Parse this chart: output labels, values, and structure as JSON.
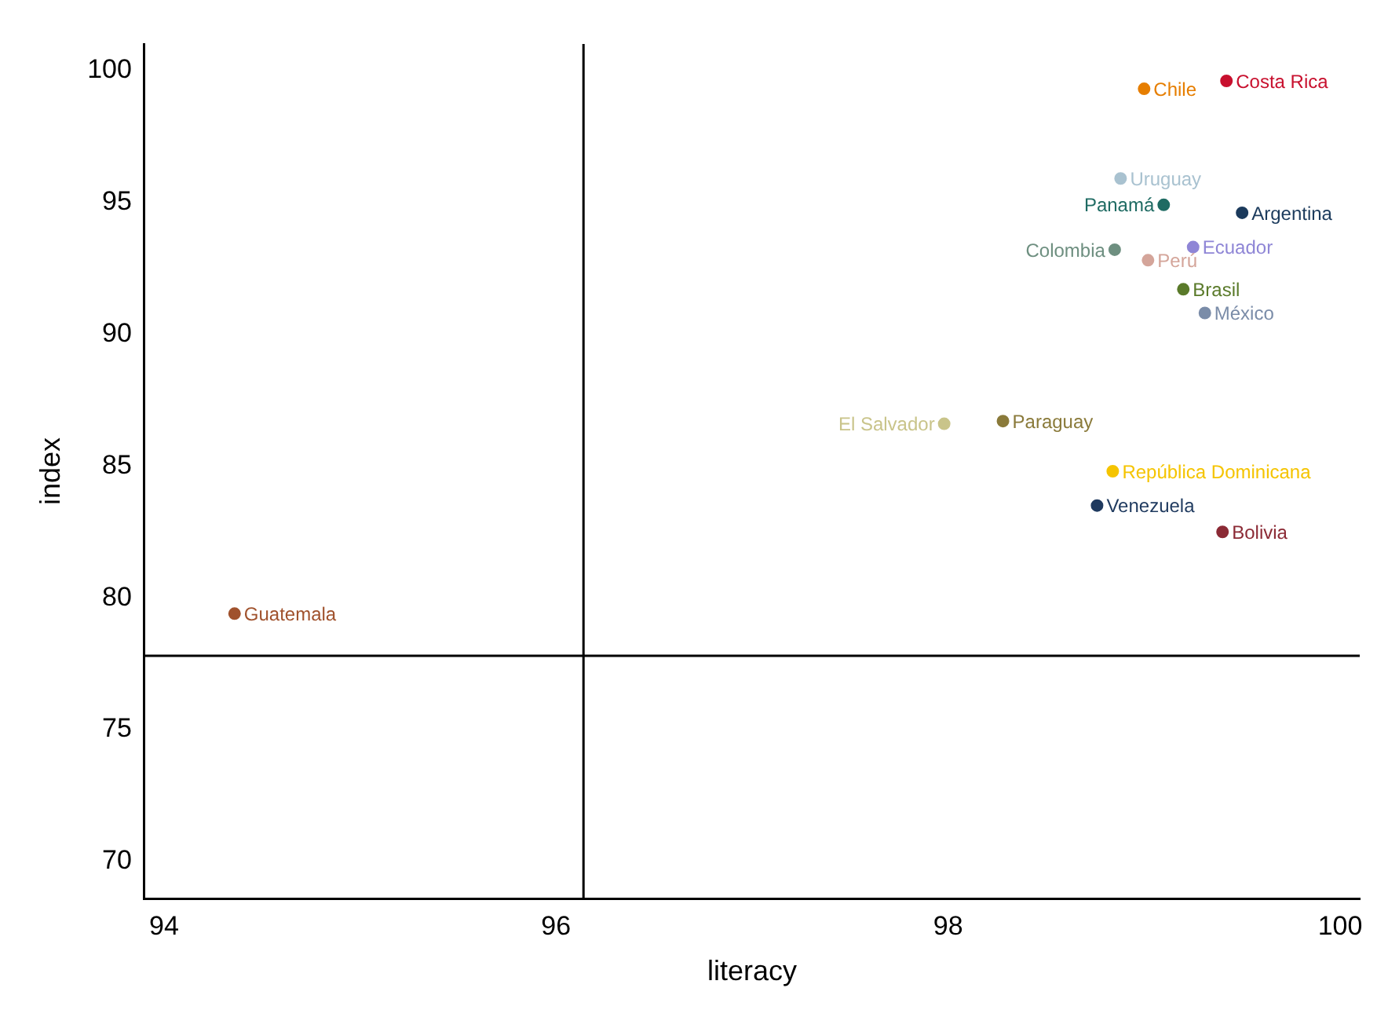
{
  "chart_data": {
    "type": "scatter",
    "xlabel": "literacy",
    "ylabel": "index",
    "xlim": [
      93.9,
      100.1
    ],
    "xticks": [
      94,
      96,
      98,
      100
    ],
    "ylim": [
      68.6,
      101
    ],
    "yticks": [
      70,
      75,
      80,
      85,
      90,
      95,
      100
    ],
    "grid": false,
    "legend": false,
    "marker": "circle",
    "ref_lines": [
      {
        "axis": "x",
        "value": 96.14,
        "color": "#000000"
      },
      {
        "axis": "y",
        "value": 77.8,
        "color": "#000000"
      }
    ],
    "series": [
      {
        "name": "Costa Rica",
        "color": "#c8102e",
        "x": [
          99.42
        ],
        "values": [
          99.6
        ]
      },
      {
        "name": "Chile",
        "color": "#e67e00",
        "x": [
          99.0
        ],
        "values": [
          99.3
        ]
      },
      {
        "name": "Uruguay",
        "color": "#a9c2d0",
        "x": [
          98.88
        ],
        "values": [
          95.9
        ]
      },
      {
        "name": "Panamá",
        "color": "#1f6b63",
        "x": [
          99.1
        ],
        "values": [
          94.9
        ]
      },
      {
        "name": "Argentina",
        "color": "#1b3a5c",
        "x": [
          99.5
        ],
        "values": [
          94.6
        ]
      },
      {
        "name": "Colombia",
        "color": "#6e8f80",
        "x": [
          98.85
        ],
        "values": [
          93.2
        ]
      },
      {
        "name": "Ecuador",
        "color": "#8f86d6",
        "x": [
          99.25
        ],
        "values": [
          93.3
        ]
      },
      {
        "name": "Perú",
        "color": "#d4a59a",
        "x": [
          99.02
        ],
        "values": [
          92.8
        ]
      },
      {
        "name": "Brasil",
        "color": "#5a7a2a",
        "x": [
          99.2
        ],
        "values": [
          91.7
        ]
      },
      {
        "name": "México",
        "color": "#7a8ca8",
        "x": [
          99.31
        ],
        "values": [
          90.8
        ]
      },
      {
        "name": "El Salvador",
        "color": "#c9c48a",
        "x": [
          97.98
        ],
        "values": [
          86.6
        ]
      },
      {
        "name": "Paraguay",
        "color": "#8a7a3a",
        "x": [
          98.28
        ],
        "values": [
          86.7
        ]
      },
      {
        "name": "República Dominicana",
        "color": "#f5c400",
        "x": [
          98.84
        ],
        "values": [
          84.8
        ]
      },
      {
        "name": "Venezuela",
        "color": "#1f3a5f",
        "x": [
          98.76
        ],
        "values": [
          83.5
        ]
      },
      {
        "name": "Bolivia",
        "color": "#8b2a35",
        "x": [
          99.4
        ],
        "values": [
          82.5
        ]
      },
      {
        "name": "Guatemala",
        "color": "#a0522d",
        "x": [
          94.36
        ],
        "values": [
          79.4
        ]
      }
    ]
  }
}
